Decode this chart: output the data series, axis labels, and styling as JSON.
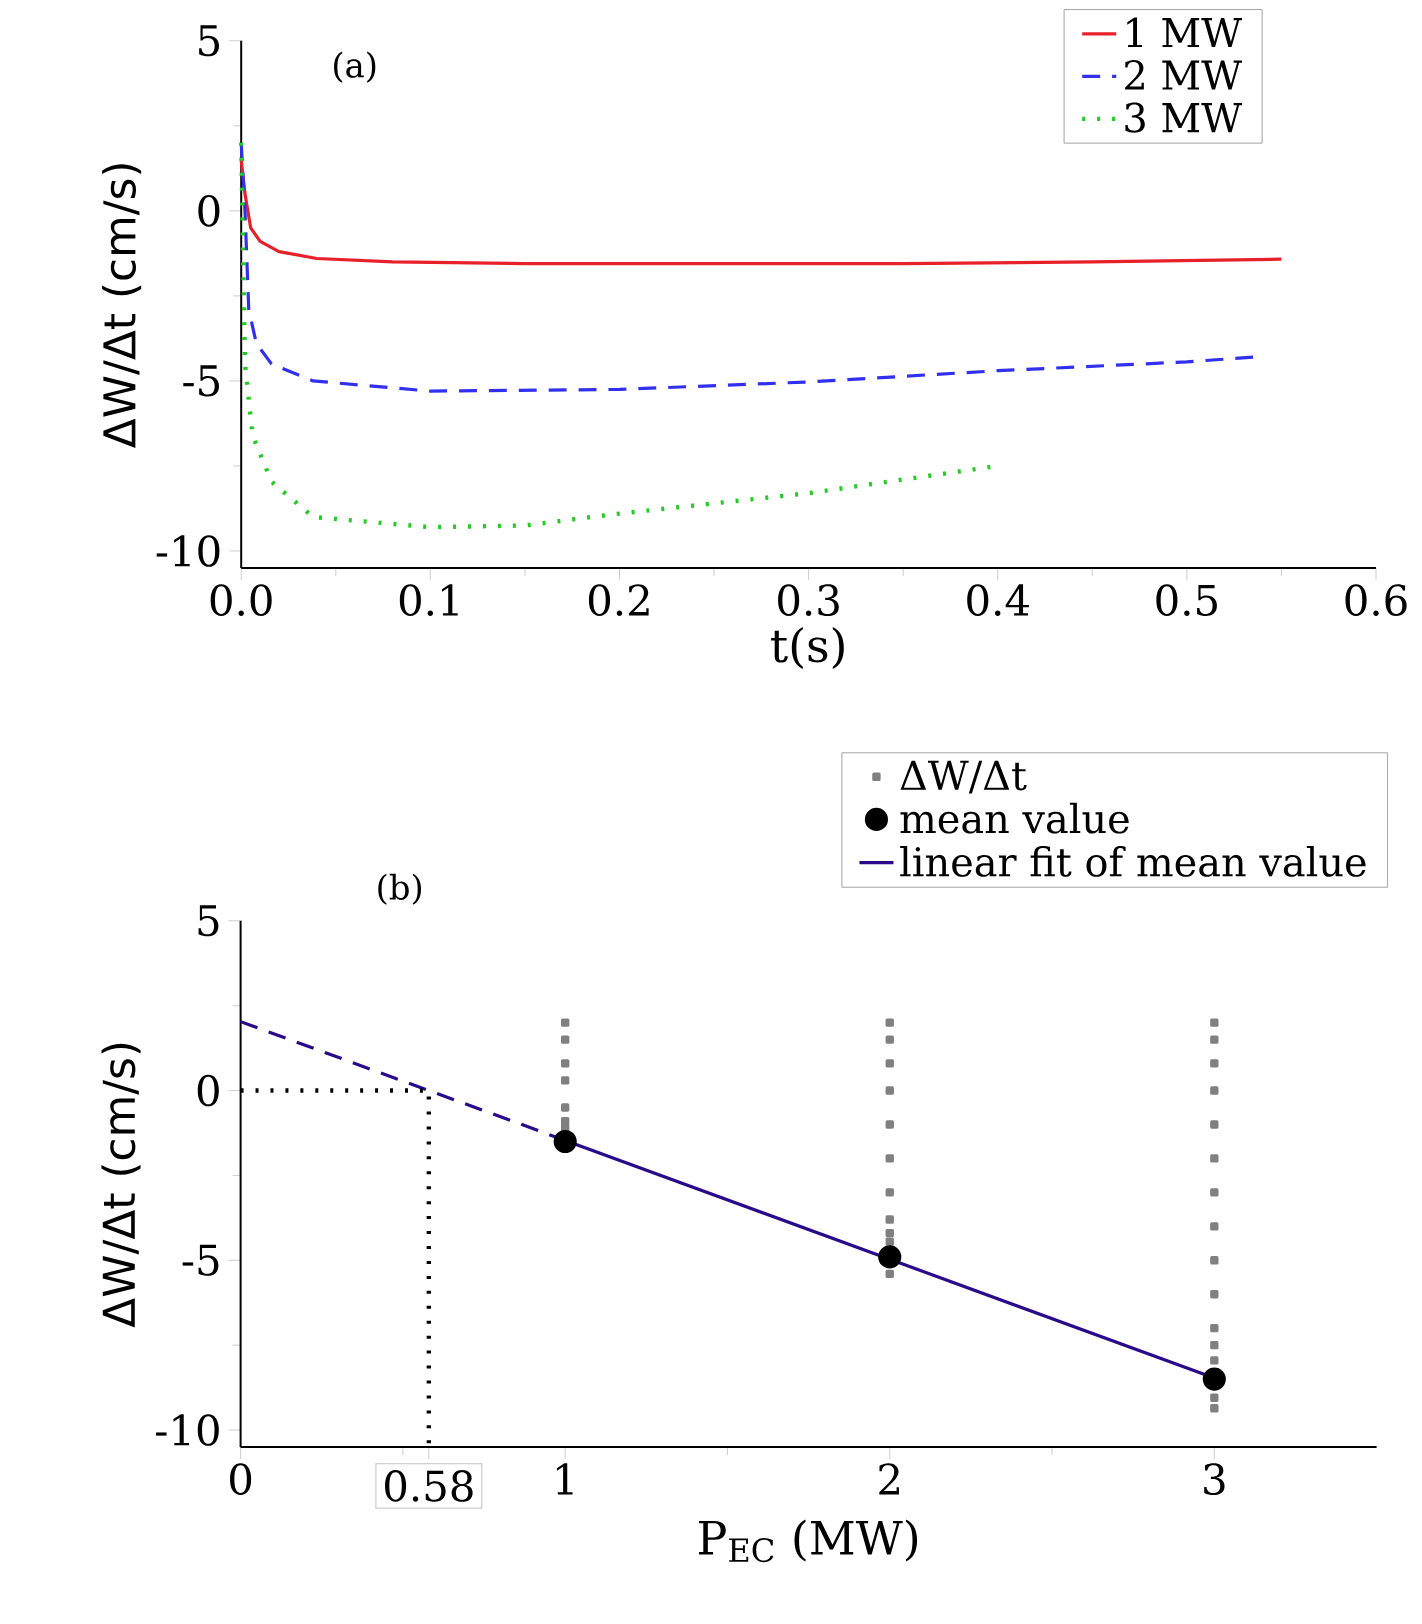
{
  "chart_data": [
    {
      "type": "line",
      "annotations": [
        "(a)"
      ],
      "xlabel": "t(s)",
      "ylabel": "ΔW/Δt (cm/s)",
      "xlim": [
        0,
        0.6
      ],
      "xticks": [
        {
          "value": 0,
          "label": "0.0"
        },
        0.1,
        0.2,
        0.3,
        0.4,
        0.5,
        0.6
      ],
      "ylim": [
        -10.5,
        5
      ],
      "yticks": [
        -10,
        -5,
        0,
        5
      ],
      "legend": "top right",
      "marker": "none",
      "series": [
        {
          "name": "1 MW",
          "color": "#e8202a",
          "line_style": "solid",
          "x": [
            0,
            0.002,
            0.005,
            0.01,
            0.02,
            0.04,
            0.08,
            0.15,
            0.25,
            0.35,
            0.45,
            0.55
          ],
          "values": [
            1.5,
            0.5,
            -0.5,
            -0.9,
            -1.2,
            -1.4,
            -1.5,
            -1.55,
            -1.55,
            -1.55,
            -1.5,
            -1.42
          ]
        },
        {
          "name": "2 MW",
          "color": "#3030ee",
          "line_style": "dashed",
          "x": [
            0,
            0.002,
            0.004,
            0.008,
            0.016,
            0.038,
            0.1,
            0.2,
            0.3,
            0.4,
            0.5,
            0.535
          ],
          "values": [
            2,
            0,
            -2.9,
            -3.9,
            -4.5,
            -5.0,
            -5.3,
            -5.25,
            -5.03,
            -4.7,
            -4.44,
            -4.3
          ]
        },
        {
          "name": "3 MW",
          "color": "#22cc22",
          "line_style": "dotted",
          "x": [
            0,
            0.002,
            0.006,
            0.016,
            0.038,
            0.1,
            0.15,
            0.2,
            0.3,
            0.4
          ],
          "values": [
            2,
            -4.5,
            -6.6,
            -7.96,
            -9.0,
            -9.3,
            -9.25,
            -8.9,
            -8.3,
            -7.5
          ]
        }
      ]
    },
    {
      "type": "scatter",
      "annotations": [
        "(b)"
      ],
      "xlabel": "P$_{EC}$ (MW)",
      "ylabel": "ΔW/Δt (cm/s)",
      "xlim": [
        0,
        3.5
      ],
      "xticks": [
        0,
        {
          "value": 0.58,
          "label": "0.58"
        },
        1,
        2,
        3
      ],
      "ylim": [
        -10.5,
        5
      ],
      "yticks": [
        -10,
        -5,
        0,
        5
      ],
      "legend": "top right",
      "series": [
        {
          "name": "ΔW/Δt",
          "type": "scatter",
          "marker": "square",
          "color": "#808080",
          "x": [
            1,
            1,
            1,
            1,
            1,
            1,
            1,
            2,
            2,
            2,
            2,
            2,
            2,
            2,
            2,
            2,
            2,
            2,
            3,
            3,
            3,
            3,
            3,
            3,
            3,
            3,
            3,
            3,
            3,
            3,
            3,
            3,
            3
          ],
          "values": [
            2.0,
            1.5,
            0.8,
            0.3,
            -0.5,
            -0.9,
            -1.1,
            2.0,
            1.5,
            0.8,
            0,
            -1,
            -2,
            -3,
            -3.8,
            -4.2,
            -4.45,
            -5.4,
            2,
            1.5,
            0.8,
            0,
            -1,
            -2,
            -3,
            -4,
            -5,
            -6,
            -7,
            -7.5,
            -7.95,
            -9.05,
            -9.36
          ]
        },
        {
          "name": "mean value",
          "type": "scatter",
          "marker": "circle",
          "color": "#000000",
          "x": [
            1,
            2,
            3
          ],
          "values": [
            -1.5,
            -4.9,
            -8.5
          ]
        },
        {
          "name": "linear fit of mean value",
          "type": "line",
          "marker": "none",
          "line_style": "solid",
          "color": "#2a0a8a",
          "x": [
            1,
            3
          ],
          "values": [
            -1.47,
            -8.47
          ]
        },
        {
          "type": "line",
          "marker": "none",
          "line_style": "dashed",
          "color": "#2a0a8a",
          "x": [
            0,
            1
          ],
          "values": [
            2.03,
            -1.47
          ]
        },
        {
          "type": "line",
          "marker": "none",
          "line_style": "dotted",
          "color": "#000000",
          "x": [
            0,
            0.58,
            0.58
          ],
          "values": [
            0,
            0,
            -10.5
          ]
        }
      ]
    }
  ]
}
